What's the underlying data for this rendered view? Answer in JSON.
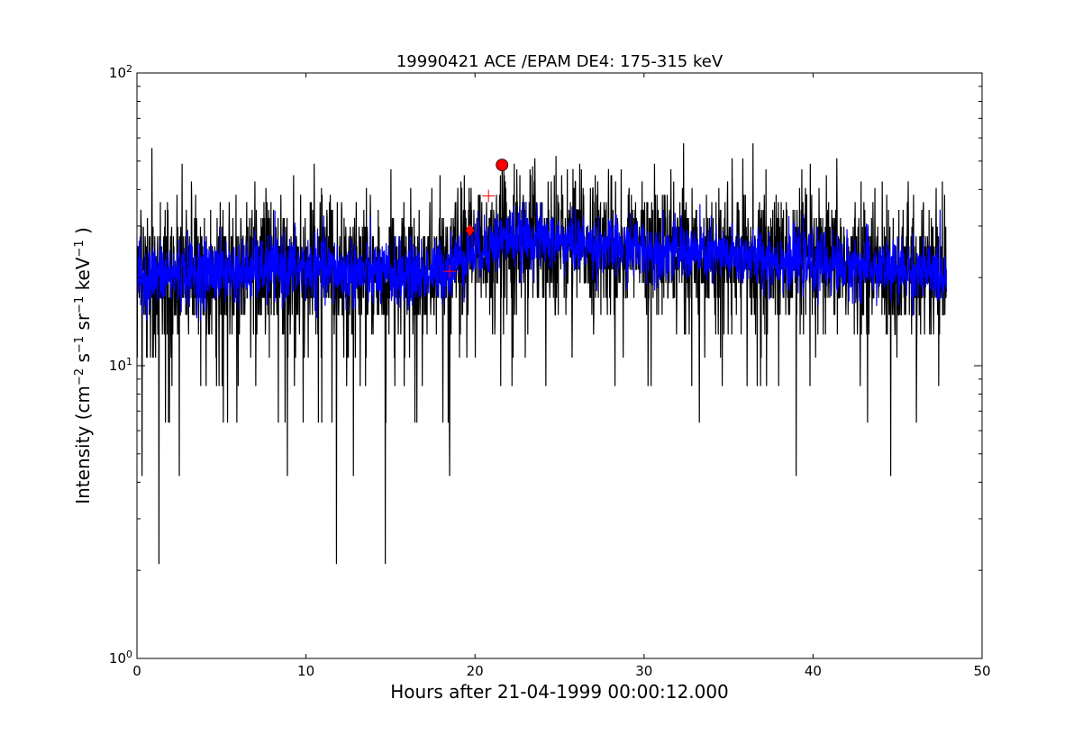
{
  "chart_data": {
    "type": "line",
    "title": "19990421 ACE /EPAM DE4: 175-315 keV",
    "xlabel": "Hours after 21-04-1999 00:00:12.000",
    "ylabel": {
      "parts": [
        {
          "text": "Intensity (cm",
          "sup": false
        },
        {
          "text": "−2",
          "sup": true
        },
        {
          "text": " s",
          "sup": false
        },
        {
          "text": "−1",
          "sup": true
        },
        {
          "text": " sr",
          "sup": false
        },
        {
          "text": "−1",
          "sup": true
        },
        {
          "text": " keV",
          "sup": false
        },
        {
          "text": "−1",
          "sup": true
        },
        {
          "text": " )",
          "sup": false
        }
      ]
    },
    "xlim": [
      0,
      50
    ],
    "ylim": [
      1,
      100
    ],
    "yscale": "log",
    "grid": false,
    "x_ticks": [
      {
        "value": 0,
        "label": "0"
      },
      {
        "value": 10,
        "label": "10"
      },
      {
        "value": 20,
        "label": "20"
      },
      {
        "value": 30,
        "label": "30"
      },
      {
        "value": 40,
        "label": "40"
      },
      {
        "value": 50,
        "label": "50"
      }
    ],
    "y_ticks": [
      {
        "value": 1,
        "base": "10",
        "exp": "0"
      },
      {
        "value": 10,
        "base": "10",
        "exp": "1"
      },
      {
        "value": 100,
        "base": "10",
        "exp": "2"
      }
    ],
    "series": [
      {
        "color": "#000000",
        "sampling": "approx. 1-minute counts, 0 to 47.9 h",
        "envelope": {
          "x": [
            0,
            2,
            4,
            6,
            8,
            10,
            12,
            14,
            16,
            18,
            19.5,
            21,
            22,
            24,
            26,
            28,
            30,
            32,
            34,
            36,
            38,
            40,
            42,
            44,
            46,
            47.9
          ],
          "baseline": [
            20,
            20.5,
            21,
            21,
            21.5,
            21.5,
            21,
            20.5,
            20.5,
            21,
            24,
            26,
            27.5,
            27,
            26,
            25.5,
            25,
            24.5,
            24,
            23.5,
            23,
            22.5,
            22,
            21.5,
            21,
            20.5
          ],
          "typical_low": [
            12.5,
            12.5,
            12.5,
            12.5,
            12.5,
            12.5,
            12.5,
            12.5,
            12.5,
            12.5,
            14.5,
            16,
            17,
            17,
            16,
            16,
            15.5,
            15,
            15,
            15,
            14.5,
            14,
            14,
            13.5,
            13,
            13
          ],
          "typical_high": [
            33,
            33,
            33,
            33,
            33,
            33,
            33,
            33,
            33,
            33,
            38,
            40,
            42,
            42,
            41,
            40,
            38,
            38,
            37,
            37,
            36,
            36,
            35,
            35,
            34,
            33
          ]
        },
        "notable_points": [
          {
            "x": 1.3,
            "y": 2.1
          },
          {
            "x": 11.8,
            "y": 2.1
          },
          {
            "x": 14.7,
            "y": 2.1
          },
          {
            "x": 0.3,
            "y": 4.2
          },
          {
            "x": 2.5,
            "y": 4.2
          },
          {
            "x": 8.9,
            "y": 4.2
          },
          {
            "x": 12.8,
            "y": 4.2
          },
          {
            "x": 18.5,
            "y": 4.2
          },
          {
            "x": 39.0,
            "y": 4.2
          },
          {
            "x": 44.6,
            "y": 4.2
          },
          {
            "x": 24.8,
            "y": 52
          },
          {
            "x": 21.6,
            "y": 50
          },
          {
            "x": 23.4,
            "y": 48
          },
          {
            "x": 27.9,
            "y": 47
          },
          {
            "x": 25.8,
            "y": 47
          }
        ]
      },
      {
        "color": "#0000ff",
        "sampling": "running mean of the counts",
        "envelope": {
          "x": [
            0,
            2,
            4,
            6,
            8,
            10,
            12,
            14,
            16,
            18,
            19.5,
            21,
            22,
            24,
            26,
            28,
            30,
            32,
            34,
            36,
            38,
            40,
            42,
            44,
            46,
            47.9
          ],
          "baseline": [
            20,
            20.5,
            21,
            21,
            21.5,
            21.5,
            21,
            20.5,
            20.5,
            21,
            24,
            26,
            27.5,
            27,
            26,
            25.5,
            25,
            24.5,
            24,
            23.5,
            23,
            22.5,
            22,
            21.5,
            21,
            20.5
          ],
          "typical_low": [
            15.5,
            16,
            16,
            16.5,
            16.5,
            16.5,
            16,
            16,
            16,
            16.5,
            19,
            20.5,
            21.5,
            21.5,
            21,
            20.5,
            20,
            19.5,
            19,
            19,
            18.5,
            18,
            17.5,
            17,
            17,
            16.5
          ],
          "typical_high": [
            26,
            26.5,
            27,
            27,
            27.5,
            27.5,
            27,
            26.5,
            26.5,
            27,
            30.5,
            33,
            34.5,
            34,
            33,
            32.5,
            32,
            31,
            30.5,
            30,
            29.5,
            29,
            28.5,
            28,
            27,
            26.5
          ]
        }
      }
    ],
    "markers": [
      {
        "shape": "plus",
        "color": "#ff0000",
        "x": 18.5,
        "y": 21
      },
      {
        "shape": "diamond",
        "color": "#ff0000",
        "x": 19.7,
        "y": 29
      },
      {
        "shape": "plus",
        "color": "#ff0000",
        "x": 20.8,
        "y": 38
      },
      {
        "shape": "circle",
        "color": "#ff0000",
        "x": 21.6,
        "y": 48.5
      }
    ]
  }
}
